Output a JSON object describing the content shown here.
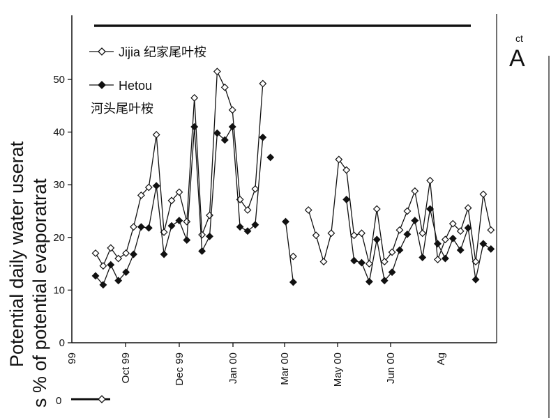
{
  "chart_data": {
    "type": "line",
    "ylabel_line1": "Potential daily water userat",
    "ylabel_line2": "s % of potential evaporatrat",
    "panel_label": "A",
    "panel_superscript": "ct",
    "ylim": [
      0,
      55
    ],
    "y_ticks": [
      0,
      10,
      20,
      30,
      40,
      50
    ],
    "x_ticks": [
      "99",
      "Oct 99",
      "Dec 99",
      "Jan 00",
      "Mar 00",
      "May 00",
      "Jun 00",
      "Ag"
    ],
    "grid": false,
    "legend_position": "top-left",
    "series": [
      {
        "name": "Jijia 纪家尾叶桉",
        "marker": "open-diamond",
        "segments": [
          [
            [
              1,
              17.0
            ],
            [
              2,
              14.6
            ],
            [
              3,
              18.0
            ],
            [
              4,
              16.0
            ],
            [
              5,
              17.0
            ],
            [
              6,
              22.0
            ],
            [
              7,
              28.0
            ],
            [
              8,
              29.5
            ],
            [
              9,
              39.5
            ],
            [
              10,
              21.0
            ],
            [
              11,
              27.0
            ],
            [
              12,
              28.6
            ],
            [
              13,
              23.0
            ],
            [
              14,
              46.5
            ],
            [
              15,
              20.5
            ],
            [
              16,
              24.2
            ],
            [
              17,
              51.5
            ],
            [
              18,
              48.5
            ],
            [
              19,
              44.2
            ],
            [
              20,
              27.2
            ],
            [
              21,
              25.2
            ],
            [
              22,
              29.2
            ],
            [
              23,
              49.2
            ]
          ],
          [
            [
              27,
              16.4
            ]
          ],
          [
            [
              29,
              25.2
            ],
            [
              30,
              20.4
            ],
            [
              31,
              15.4
            ],
            [
              32,
              20.8
            ],
            [
              33,
              34.8
            ],
            [
              34,
              32.8
            ],
            [
              35,
              20.4
            ],
            [
              36,
              20.8
            ],
            [
              37,
              15.0
            ],
            [
              38,
              25.4
            ],
            [
              39,
              15.4
            ],
            [
              40,
              17.2
            ],
            [
              41,
              21.4
            ],
            [
              42,
              25.0
            ],
            [
              43,
              28.8
            ],
            [
              44,
              20.8
            ],
            [
              45,
              30.8
            ],
            [
              46,
              15.8
            ],
            [
              47,
              19.6
            ],
            [
              48,
              22.6
            ],
            [
              49,
              21.2
            ],
            [
              50,
              25.6
            ],
            [
              51,
              15.4
            ],
            [
              52,
              28.2
            ],
            [
              53,
              21.4
            ]
          ]
        ]
      },
      {
        "name": "Hetou 河头尾叶桉",
        "marker": "filled-diamond",
        "segments": [
          [
            [
              1,
              12.7
            ],
            [
              2,
              11.0
            ],
            [
              3,
              14.8
            ],
            [
              4,
              11.8
            ],
            [
              5,
              13.4
            ],
            [
              6,
              16.8
            ],
            [
              7,
              22.0
            ],
            [
              8,
              21.8
            ],
            [
              9,
              29.8
            ],
            [
              10,
              16.8
            ],
            [
              11,
              22.2
            ],
            [
              12,
              23.2
            ],
            [
              13,
              19.5
            ],
            [
              14,
              41.0
            ],
            [
              15,
              17.4
            ],
            [
              16,
              20.2
            ],
            [
              17,
              39.8
            ],
            [
              18,
              38.5
            ],
            [
              19,
              41.0
            ],
            [
              20,
              22.0
            ],
            [
              21,
              21.2
            ],
            [
              22,
              22.4
            ],
            [
              23,
              39.0
            ]
          ],
          [
            [
              24,
              35.2
            ]
          ],
          [
            [
              26,
              23.0
            ],
            [
              27,
              11.5
            ]
          ],
          [
            [
              34,
              27.2
            ],
            [
              35,
              15.6
            ],
            [
              36,
              15.2
            ],
            [
              37,
              11.6
            ],
            [
              38,
              19.6
            ],
            [
              39,
              11.8
            ],
            [
              40,
              13.4
            ],
            [
              41,
              17.6
            ],
            [
              42,
              20.6
            ],
            [
              43,
              23.2
            ],
            [
              44,
              16.2
            ],
            [
              45,
              25.4
            ],
            [
              46,
              18.8
            ],
            [
              47,
              16.0
            ],
            [
              48,
              19.8
            ],
            [
              49,
              17.6
            ],
            [
              50,
              21.8
            ],
            [
              51,
              12.0
            ],
            [
              52,
              18.8
            ],
            [
              53,
              17.8
            ]
          ]
        ]
      }
    ]
  }
}
